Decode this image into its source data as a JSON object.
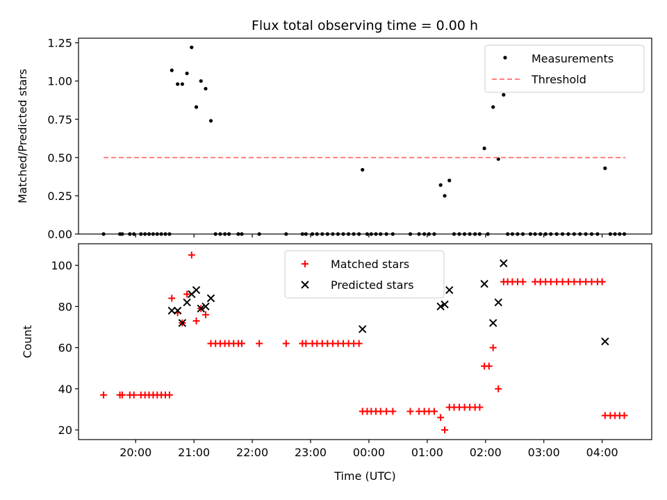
{
  "title": "Flux total observing time = 0.00 h",
  "colors": {
    "measurement": "#000000",
    "threshold": "#ff7f7f",
    "matched": "#ff0000",
    "predicted": "#000000"
  },
  "chart_data": [
    {
      "type": "scatter",
      "ylabel": "Matched/Predicted stars",
      "xlim": [
        19.02,
        28.85
      ],
      "ylim": [
        0,
        1.28
      ],
      "yticks": [
        "0.00",
        "0.25",
        "0.50",
        "0.75",
        "1.00",
        "1.25"
      ],
      "ytick_values": [
        0,
        0.25,
        0.5,
        0.75,
        1.0,
        1.25
      ],
      "legend_position": "top-right",
      "series": [
        {
          "name": "Measurements",
          "marker": "dot",
          "points": [
            [
              19.45,
              0
            ],
            [
              19.73,
              0
            ],
            [
              19.77,
              0
            ],
            [
              19.9,
              0
            ],
            [
              19.97,
              0
            ],
            [
              20.09,
              0
            ],
            [
              20.16,
              0
            ],
            [
              20.23,
              0
            ],
            [
              20.3,
              0
            ],
            [
              20.37,
              0
            ],
            [
              20.44,
              0
            ],
            [
              20.51,
              0
            ],
            [
              20.58,
              0
            ],
            [
              20.62,
              1.07
            ],
            [
              20.72,
              0.98
            ],
            [
              20.8,
              0.98
            ],
            [
              20.88,
              1.05
            ],
            [
              20.96,
              1.22
            ],
            [
              21.04,
              0.83
            ],
            [
              21.12,
              1.0
            ],
            [
              21.2,
              0.95
            ],
            [
              21.29,
              0.74
            ],
            [
              21.37,
              0
            ],
            [
              21.45,
              0
            ],
            [
              21.53,
              0
            ],
            [
              21.6,
              0
            ],
            [
              21.76,
              0
            ],
            [
              21.82,
              0
            ],
            [
              22.12,
              0
            ],
            [
              22.58,
              0
            ],
            [
              22.86,
              0
            ],
            [
              22.92,
              0
            ],
            [
              23.03,
              0
            ],
            [
              23.11,
              0
            ],
            [
              23.2,
              0
            ],
            [
              23.29,
              0
            ],
            [
              23.38,
              0
            ],
            [
              23.47,
              0
            ],
            [
              23.56,
              0
            ],
            [
              23.65,
              0
            ],
            [
              23.74,
              0
            ],
            [
              23.83,
              0
            ],
            [
              23.89,
              0.42
            ],
            [
              23.97,
              0
            ],
            [
              24.04,
              0
            ],
            [
              24.12,
              0
            ],
            [
              24.2,
              0
            ],
            [
              24.3,
              0
            ],
            [
              24.41,
              0
            ],
            [
              24.71,
              0
            ],
            [
              24.86,
              0
            ],
            [
              24.95,
              0
            ],
            [
              25.03,
              0
            ],
            [
              25.12,
              0
            ],
            [
              25.23,
              0.32
            ],
            [
              25.3,
              0.25
            ],
            [
              25.38,
              0.35
            ],
            [
              25.46,
              0
            ],
            [
              25.55,
              0
            ],
            [
              25.64,
              0
            ],
            [
              25.73,
              0
            ],
            [
              25.82,
              0
            ],
            [
              25.9,
              0
            ],
            [
              25.98,
              0.56
            ],
            [
              26.04,
              0
            ],
            [
              26.13,
              0.83
            ],
            [
              26.22,
              0.49
            ],
            [
              26.31,
              0.91
            ],
            [
              26.38,
              0
            ],
            [
              26.46,
              0
            ],
            [
              26.55,
              0
            ],
            [
              26.64,
              0
            ],
            [
              26.77,
              0
            ],
            [
              26.85,
              0
            ],
            [
              26.94,
              0
            ],
            [
              27.03,
              0
            ],
            [
              27.12,
              0
            ],
            [
              27.22,
              0
            ],
            [
              27.32,
              0
            ],
            [
              27.42,
              0
            ],
            [
              27.52,
              0
            ],
            [
              27.62,
              0
            ],
            [
              27.72,
              0
            ],
            [
              27.82,
              0
            ],
            [
              27.92,
              0
            ],
            [
              28.05,
              0.43
            ],
            [
              28.14,
              0
            ],
            [
              28.22,
              0
            ],
            [
              28.3,
              0
            ],
            [
              28.38,
              0
            ]
          ]
        },
        {
          "name": "Threshold",
          "line": "dashed",
          "points": [
            [
              19.45,
              0.5
            ],
            [
              28.4,
              0.5
            ]
          ]
        }
      ]
    },
    {
      "type": "scatter",
      "xlabel": "Time (UTC)",
      "ylabel": "Count",
      "xlim": [
        19.02,
        28.85
      ],
      "ylim": [
        15.3,
        110.5
      ],
      "yticks": [
        "20",
        "40",
        "60",
        "80",
        "100"
      ],
      "ytick_values": [
        20,
        40,
        60,
        80,
        100
      ],
      "xticks": [
        "20:00",
        "21:00",
        "22:00",
        "23:00",
        "00:00",
        "01:00",
        "02:00",
        "03:00",
        "04:00"
      ],
      "xtick_values": [
        20,
        21,
        22,
        23,
        24,
        25,
        26,
        27,
        28
      ],
      "legend_position": "upper-center",
      "series": [
        {
          "name": "Matched stars",
          "marker": "plus",
          "points": [
            [
              19.45,
              37
            ],
            [
              19.73,
              37
            ],
            [
              19.77,
              37
            ],
            [
              19.9,
              37
            ],
            [
              19.97,
              37
            ],
            [
              20.09,
              37
            ],
            [
              20.16,
              37
            ],
            [
              20.23,
              37
            ],
            [
              20.3,
              37
            ],
            [
              20.37,
              37
            ],
            [
              20.44,
              37
            ],
            [
              20.51,
              37
            ],
            [
              20.58,
              37
            ],
            [
              20.62,
              84
            ],
            [
              20.72,
              77
            ],
            [
              20.8,
              72
            ],
            [
              20.88,
              86
            ],
            [
              20.96,
              105
            ],
            [
              21.04,
              73
            ],
            [
              21.12,
              79
            ],
            [
              21.2,
              76
            ],
            [
              21.29,
              62
            ],
            [
              21.37,
              62
            ],
            [
              21.45,
              62
            ],
            [
              21.53,
              62
            ],
            [
              21.6,
              62
            ],
            [
              21.68,
              62
            ],
            [
              21.76,
              62
            ],
            [
              21.82,
              62
            ],
            [
              22.12,
              62
            ],
            [
              22.58,
              62
            ],
            [
              22.86,
              62
            ],
            [
              22.92,
              62
            ],
            [
              23.03,
              62
            ],
            [
              23.11,
              62
            ],
            [
              23.2,
              62
            ],
            [
              23.29,
              62
            ],
            [
              23.38,
              62
            ],
            [
              23.47,
              62
            ],
            [
              23.56,
              62
            ],
            [
              23.65,
              62
            ],
            [
              23.74,
              62
            ],
            [
              23.83,
              62
            ],
            [
              23.89,
              29
            ],
            [
              23.97,
              29
            ],
            [
              24.04,
              29
            ],
            [
              24.12,
              29
            ],
            [
              24.2,
              29
            ],
            [
              24.3,
              29
            ],
            [
              24.41,
              29
            ],
            [
              24.71,
              29
            ],
            [
              24.86,
              29
            ],
            [
              24.95,
              29
            ],
            [
              25.03,
              29
            ],
            [
              25.12,
              29
            ],
            [
              25.23,
              26
            ],
            [
              25.3,
              20
            ],
            [
              25.38,
              31
            ],
            [
              25.46,
              31
            ],
            [
              25.55,
              31
            ],
            [
              25.64,
              31
            ],
            [
              25.73,
              31
            ],
            [
              25.82,
              31
            ],
            [
              25.9,
              31
            ],
            [
              25.98,
              51
            ],
            [
              26.06,
              51
            ],
            [
              26.13,
              60
            ],
            [
              26.22,
              40
            ],
            [
              26.31,
              92
            ],
            [
              26.38,
              92
            ],
            [
              26.46,
              92
            ],
            [
              26.55,
              92
            ],
            [
              26.64,
              92
            ],
            [
              26.85,
              92
            ],
            [
              26.94,
              92
            ],
            [
              27.03,
              92
            ],
            [
              27.12,
              92
            ],
            [
              27.22,
              92
            ],
            [
              27.32,
              92
            ],
            [
              27.42,
              92
            ],
            [
              27.52,
              92
            ],
            [
              27.62,
              92
            ],
            [
              27.72,
              92
            ],
            [
              27.82,
              92
            ],
            [
              27.92,
              92
            ],
            [
              28.0,
              92
            ],
            [
              28.05,
              27
            ],
            [
              28.14,
              27
            ],
            [
              28.22,
              27
            ],
            [
              28.3,
              27
            ],
            [
              28.38,
              27
            ]
          ]
        },
        {
          "name": "Predicted stars",
          "marker": "x",
          "points": [
            [
              20.62,
              78
            ],
            [
              20.72,
              78
            ],
            [
              20.8,
              72
            ],
            [
              20.88,
              82
            ],
            [
              20.96,
              86
            ],
            [
              21.04,
              88
            ],
            [
              21.12,
              79
            ],
            [
              21.2,
              80
            ],
            [
              21.29,
              84
            ],
            [
              23.89,
              69
            ],
            [
              25.23,
              80
            ],
            [
              25.3,
              81
            ],
            [
              25.38,
              88
            ],
            [
              25.98,
              91
            ],
            [
              26.13,
              72
            ],
            [
              26.22,
              82
            ],
            [
              26.31,
              101
            ],
            [
              28.05,
              63
            ]
          ]
        }
      ]
    }
  ]
}
